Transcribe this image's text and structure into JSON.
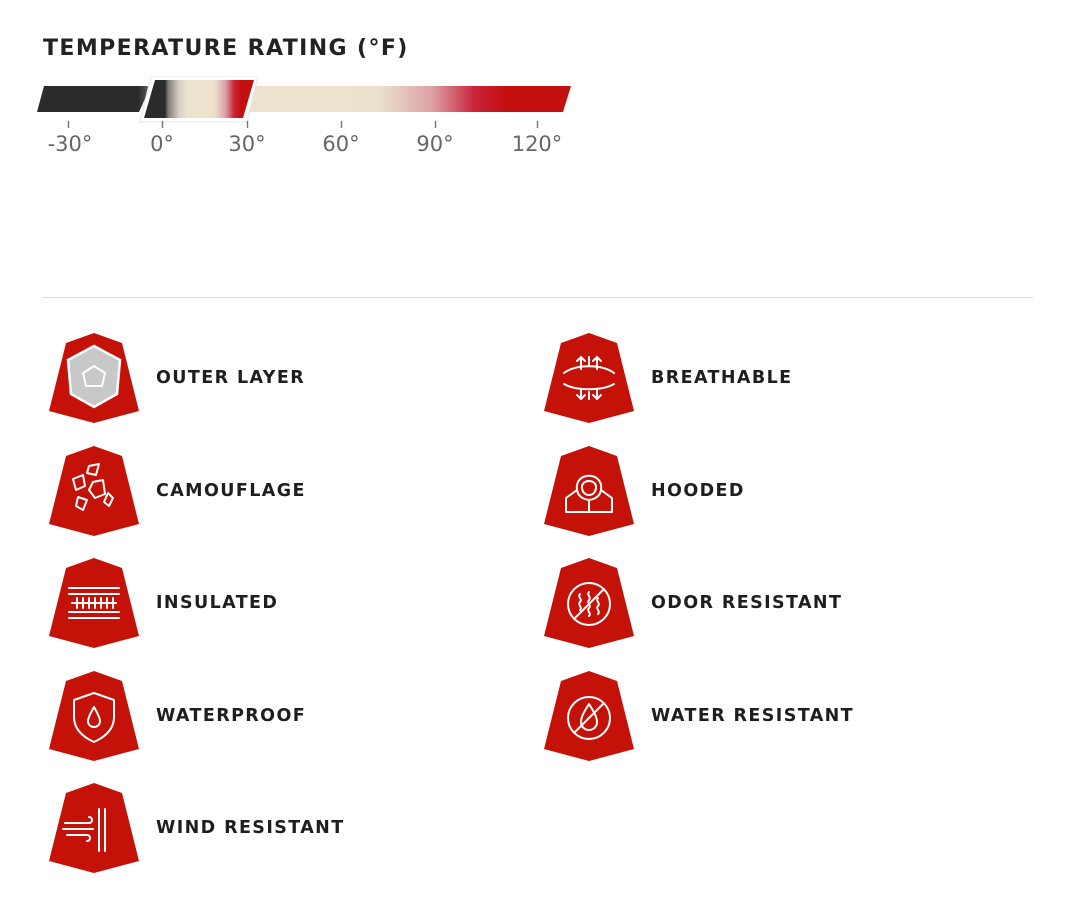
{
  "temperature": {
    "title": "TEMPERATURE RATING (°F)",
    "ticks": [
      "-30°",
      "0°",
      "30°",
      "60°",
      "90°",
      "120°"
    ],
    "selected_range": {
      "min": 0,
      "max": 30
    },
    "scale_range": [
      -30,
      120
    ],
    "colors": {
      "cold": "#2b2b2b",
      "cool": "#9a978f",
      "mild": "#ece3cf",
      "warm": "#c80f0f"
    }
  },
  "features": [
    {
      "label": "OUTER LAYER",
      "icon": "outer-layer-icon"
    },
    {
      "label": "BREATHABLE",
      "icon": "breathable-icon"
    },
    {
      "label": "CAMOUFLAGE",
      "icon": "camouflage-icon"
    },
    {
      "label": "HOODED",
      "icon": "hooded-icon"
    },
    {
      "label": "INSULATED",
      "icon": "insulated-icon"
    },
    {
      "label": "ODOR RESISTANT",
      "icon": "odor-resistant-icon"
    },
    {
      "label": "WATERPROOF",
      "icon": "waterproof-icon"
    },
    {
      "label": "WATER RESISTANT",
      "icon": "water-resistant-icon"
    },
    {
      "label": "WIND RESISTANT",
      "icon": "wind-resistant-icon"
    }
  ],
  "colors": {
    "badge": "#c41208",
    "icon_stroke": "#ffffff",
    "divider": "#dcdcdc"
  }
}
